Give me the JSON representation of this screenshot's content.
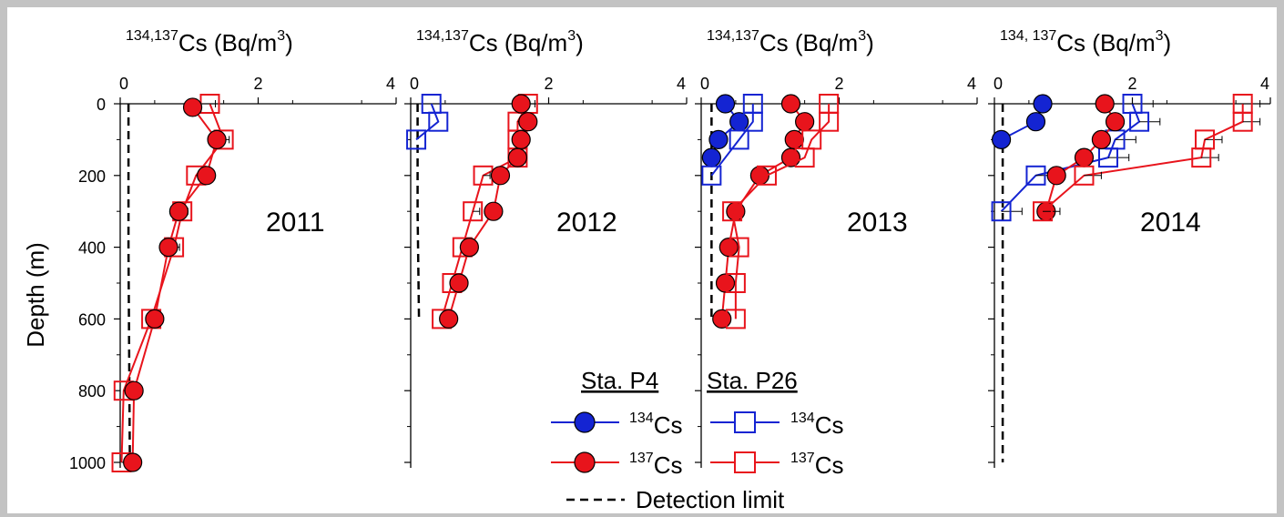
{
  "chart_data": {
    "type": "scatter",
    "y_axis": {
      "label": "Depth (m)",
      "range": [
        0,
        1000
      ],
      "ticks": [
        0,
        200,
        400,
        600,
        800,
        1000
      ],
      "inverted": true
    },
    "x_axis": {
      "range": [
        0,
        4
      ],
      "ticks": [
        0,
        2,
        4
      ]
    },
    "panels": [
      {
        "year": "2011",
        "xlabel": {
          "prefix": "134,137",
          "text": "Cs (Bq/m",
          "sup": "3",
          "suffix": ")"
        },
        "detection_limit": {
          "x": [
            0.12,
            0.12,
            0.14
          ],
          "y": [
            0,
            400,
            1000
          ]
        },
        "series": [
          {
            "station": "P26",
            "isotope": "137Cs",
            "shape": "square",
            "color": "#e8141c",
            "fill": "none",
            "err": 0.08,
            "x": [
              1.3,
              1.5,
              1.1,
              0.9,
              0.78,
              0.45,
              0.05,
              0.02
            ],
            "y": [
              0,
              100,
              200,
              300,
              400,
              600,
              800,
              1000
            ]
          },
          {
            "station": "P4",
            "isotope": "137Cs",
            "shape": "circle",
            "color": "#e8141c",
            "fill": "#e8141c",
            "err": 0.07,
            "x": [
              1.05,
              1.4,
              1.25,
              0.85,
              0.7,
              0.5,
              0.2,
              0.18
            ],
            "y": [
              10,
              100,
              200,
              300,
              400,
              600,
              800,
              1000
            ]
          }
        ]
      },
      {
        "year": "2012",
        "xlabel": {
          "prefix": "134,137",
          "text": "Cs (Bq/m",
          "sup": "3",
          "suffix": ")"
        },
        "detection_limit": {
          "x": [
            0.1,
            0.1,
            0.12
          ],
          "y": [
            0,
            300,
            600
          ]
        },
        "series": [
          {
            "station": "P26",
            "isotope": "134Cs",
            "shape": "square",
            "color": "#1424d2",
            "fill": "none",
            "err": 0,
            "x": [
              0.3,
              0.4,
              0.08
            ],
            "y": [
              0,
              50,
              100
            ]
          },
          {
            "station": "P26",
            "isotope": "137Cs",
            "shape": "square",
            "color": "#e8141c",
            "fill": "none",
            "err": 0.1,
            "x": [
              1.7,
              1.55,
              1.55,
              1.55,
              1.05,
              0.9,
              0.75,
              0.6,
              0.45
            ],
            "y": [
              0,
              50,
              100,
              150,
              200,
              300,
              400,
              500,
              600
            ]
          },
          {
            "station": "P4",
            "isotope": "137Cs",
            "shape": "circle",
            "color": "#e8141c",
            "fill": "#e8141c",
            "err": 0.12,
            "x": [
              1.6,
              1.7,
              1.6,
              1.55,
              1.3,
              1.2,
              0.85,
              0.7,
              0.55
            ],
            "y": [
              0,
              50,
              100,
              150,
              200,
              300,
              400,
              500,
              600
            ]
          }
        ]
      },
      {
        "year": "2013",
        "xlabel": {
          "prefix": "134,137",
          "text": "Cs (Bq/m",
          "sup": "3",
          "suffix": ")"
        },
        "detection_limit": {
          "x": [
            0.15,
            0.15,
            0.15
          ],
          "y": [
            0,
            300,
            600
          ]
        },
        "series": [
          {
            "station": "P4",
            "isotope": "134Cs",
            "shape": "circle",
            "color": "#1424d2",
            "fill": "#1424d2",
            "err": 0,
            "x": [
              0.35,
              0.55,
              0.25,
              0.15
            ],
            "y": [
              0,
              50,
              100,
              150
            ]
          },
          {
            "station": "P26",
            "isotope": "134Cs",
            "shape": "square",
            "color": "#1424d2",
            "fill": "none",
            "err": 0,
            "x": [
              0.75,
              0.75,
              0.55,
              0.15
            ],
            "y": [
              0,
              50,
              100,
              200
            ]
          },
          {
            "station": "P4",
            "isotope": "137Cs",
            "shape": "circle",
            "color": "#e8141c",
            "fill": "#e8141c",
            "err": 0,
            "x": [
              1.3,
              1.5,
              1.35,
              1.3,
              0.85,
              0.5,
              0.4,
              0.35,
              0.3
            ],
            "y": [
              0,
              50,
              100,
              150,
              200,
              300,
              400,
              500,
              600
            ]
          },
          {
            "station": "P26",
            "isotope": "137Cs",
            "shape": "square",
            "color": "#e8141c",
            "fill": "none",
            "err": 0,
            "x": [
              1.85,
              1.85,
              1.6,
              1.5,
              0.95,
              0.45,
              0.55,
              0.5,
              0.5
            ],
            "y": [
              0,
              50,
              100,
              150,
              200,
              300,
              400,
              500,
              600
            ]
          }
        ]
      },
      {
        "year": "2014",
        "xlabel": {
          "prefix": "134, 137",
          "text": "Cs (Bq/m",
          "sup": "3",
          "suffix": ")"
        },
        "detection_limit": {
          "x": [
            0.12,
            0.12,
            0.12
          ],
          "y": [
            0,
            500,
            1000
          ]
        },
        "series": [
          {
            "station": "P4",
            "isotope": "134Cs",
            "shape": "circle",
            "color": "#1424d2",
            "fill": "#1424d2",
            "err": 0.08,
            "x": [
              0.7,
              0.6,
              0.1
            ],
            "y": [
              0,
              50,
              100
            ]
          },
          {
            "station": "P26",
            "isotope": "134Cs",
            "shape": "square",
            "color": "#1424d2",
            "fill": "none",
            "err": 0.3,
            "x": [
              2.0,
              2.1,
              1.75,
              1.65,
              0.6,
              0.1
            ],
            "y": [
              0,
              50,
              100,
              150,
              200,
              300
            ]
          },
          {
            "station": "P4",
            "isotope": "137Cs",
            "shape": "circle",
            "color": "#e8141c",
            "fill": "#e8141c",
            "err": 0.1,
            "x": [
              1.6,
              1.75,
              1.55,
              1.3,
              0.9,
              0.75
            ],
            "y": [
              0,
              50,
              100,
              150,
              200,
              300
            ]
          },
          {
            "station": "P26",
            "isotope": "137Cs",
            "shape": "square",
            "color": "#e8141c",
            "fill": "none",
            "err": 0.25,
            "x": [
              3.6,
              3.6,
              3.05,
              3.0,
              1.3,
              0.7
            ],
            "y": [
              0,
              50,
              100,
              150,
              200,
              300
            ]
          }
        ]
      }
    ]
  },
  "legend": {
    "header_p4": "Sta. P4",
    "header_p26": "Sta. P26",
    "sup_134": "134",
    "sup_137": "137",
    "cs": "Cs",
    "detection": "Detection limit"
  },
  "colors": {
    "red": "#e8141c",
    "blue": "#1424d2",
    "frame": "#c3c3c3"
  }
}
